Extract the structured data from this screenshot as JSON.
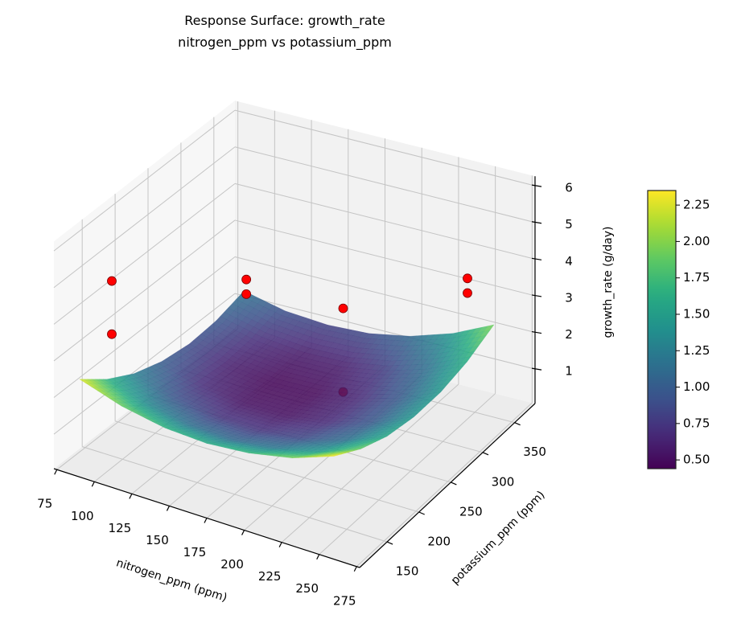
{
  "chart_data": {
    "type": "surface",
    "title": [
      "Response Surface: growth_rate",
      "nitrogen_ppm vs potassium_ppm"
    ],
    "xlabel": "nitrogen_ppm (ppm)",
    "ylabel": "potassium_ppm (ppm)",
    "zlabel": "growth_rate (g/day)",
    "xlim": [
      73,
      277
    ],
    "ylim": [
      107,
      382
    ],
    "zlim": [
      0.06,
      6.26
    ],
    "xticks": [
      75,
      100,
      125,
      150,
      175,
      200,
      225,
      250,
      275
    ],
    "yticks": [
      150,
      200,
      250,
      300,
      350
    ],
    "zticks": [
      1,
      2,
      3,
      4,
      5,
      6
    ],
    "grid": true,
    "colormap": "viridis",
    "surface_alpha": 0.85,
    "surface": {
      "x": [
        80,
        108,
        137,
        165,
        193,
        222,
        250
      ],
      "y": [
        130,
        172,
        213,
        255,
        297,
        338,
        380
      ],
      "z": [
        [
          2.27,
          1.9,
          1.68,
          1.62,
          1.72,
          1.96,
          2.37
        ],
        [
          1.68,
          1.33,
          1.13,
          1.09,
          1.21,
          1.48,
          1.9
        ],
        [
          1.26,
          0.93,
          0.75,
          0.73,
          0.86,
          1.15,
          1.59
        ],
        [
          1.0,
          0.68,
          0.52,
          0.52,
          0.67,
          0.98,
          1.45
        ],
        [
          0.89,
          0.6,
          0.46,
          0.48,
          0.65,
          0.98,
          1.46
        ],
        [
          0.95,
          0.68,
          0.56,
          0.59,
          0.78,
          1.13,
          1.63
        ],
        [
          1.17,
          0.91,
          0.82,
          0.87,
          1.08,
          1.45,
          1.97
        ]
      ]
    },
    "scatter": {
      "color": "#ff0000",
      "points": [
        {
          "x": 95,
          "y": 145,
          "z": 4.93
        },
        {
          "x": 95,
          "y": 145,
          "z": 3.48
        },
        {
          "x": 95,
          "y": 350,
          "z": 2.06
        },
        {
          "x": 95,
          "y": 350,
          "z": 1.66
        },
        {
          "x": 187,
          "y": 290,
          "z": 3.15
        },
        {
          "x": 187,
          "y": 290,
          "z": 0.87
        },
        {
          "x": 245,
          "y": 350,
          "z": 3.66
        },
        {
          "x": 245,
          "y": 350,
          "z": 3.26
        }
      ]
    },
    "colorbar": {
      "range": [
        0.44,
        2.35
      ],
      "ticks": [
        "0.50",
        "0.75",
        "1.00",
        "1.25",
        "1.50",
        "1.75",
        "2.00",
        "2.25"
      ]
    }
  }
}
